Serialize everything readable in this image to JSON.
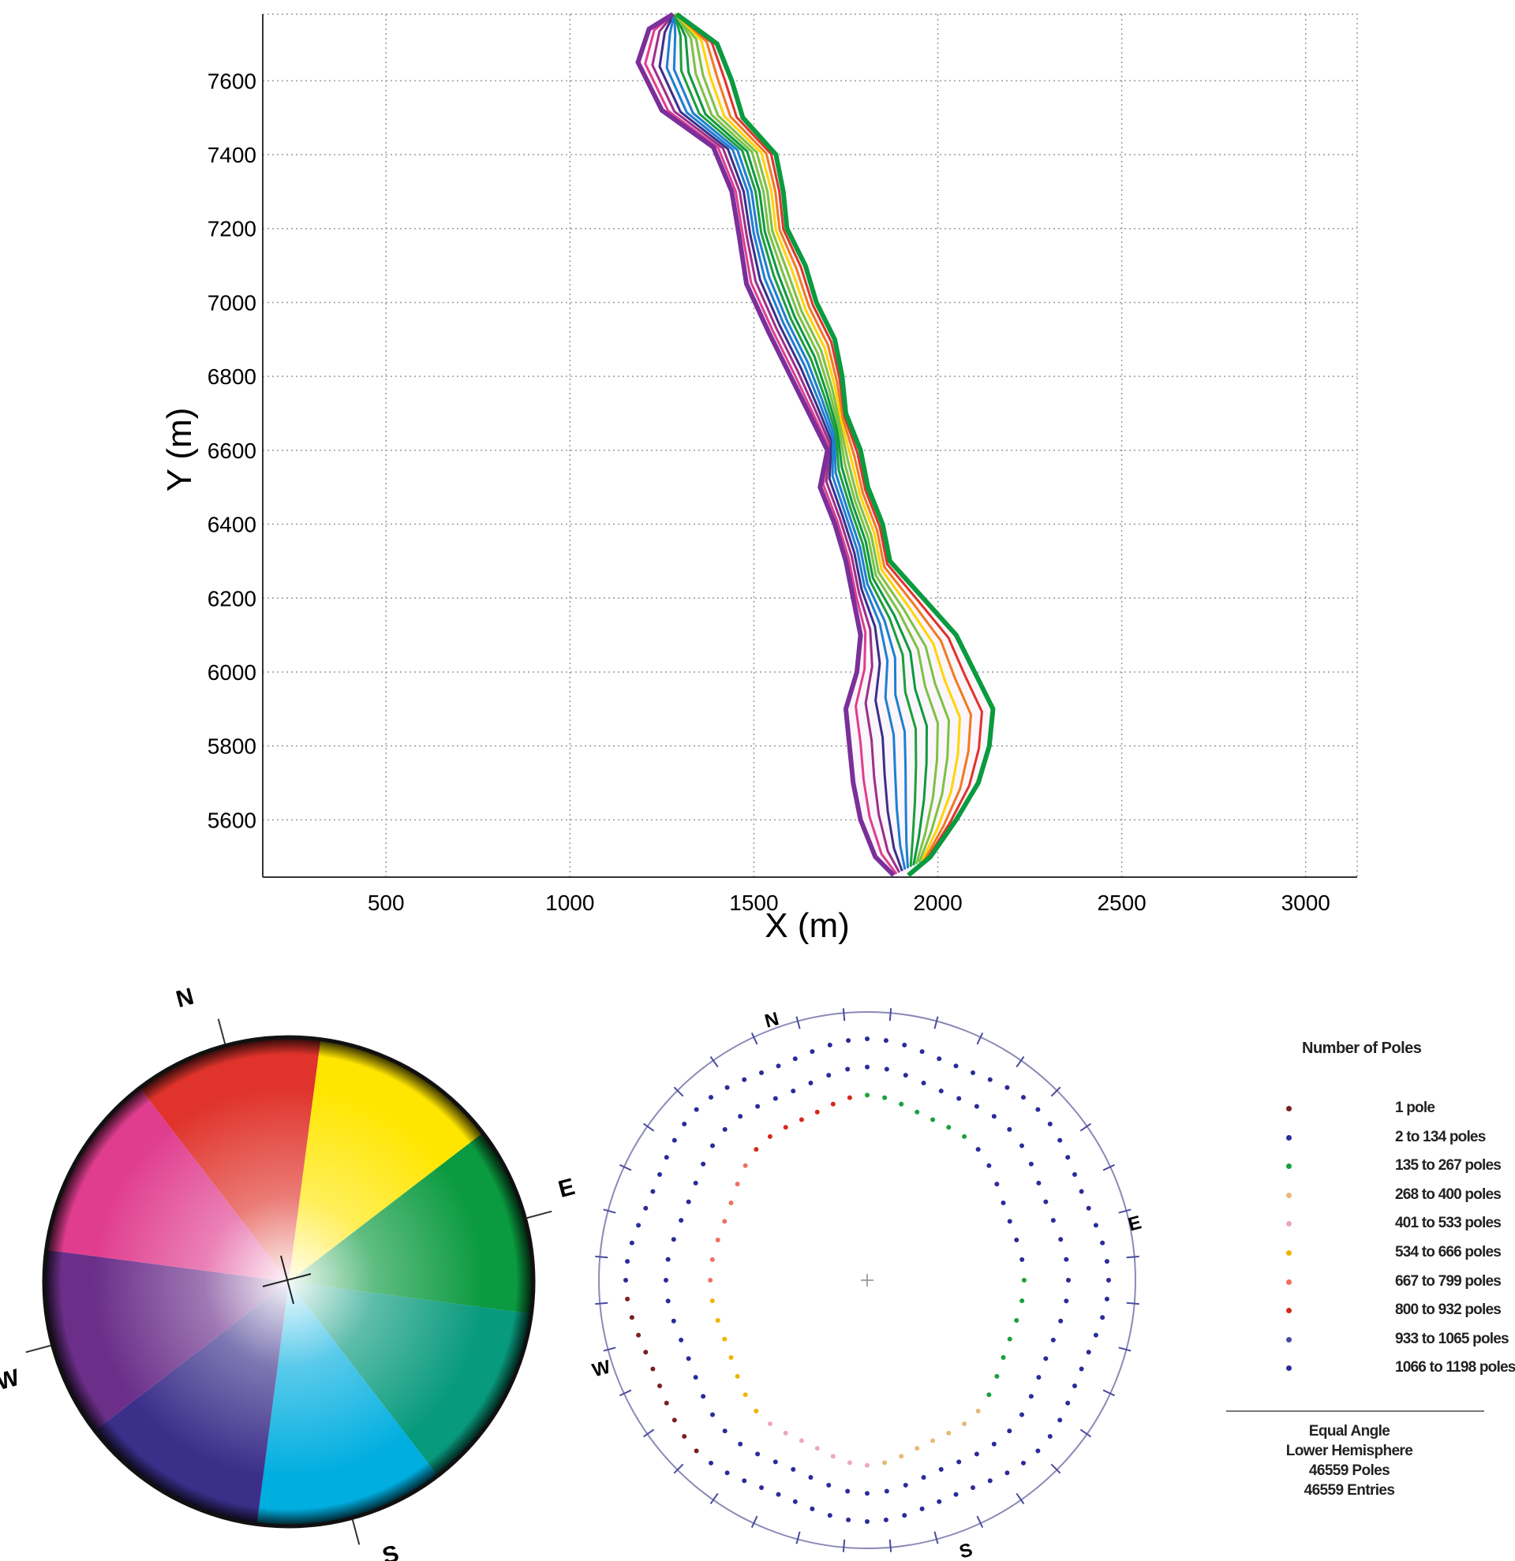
{
  "chart_data": [
    {
      "type": "line",
      "xlabel": "X (m)",
      "ylabel": "Y (m)",
      "xlim": [
        165,
        3140
      ],
      "ylim": [
        5445,
        7780
      ],
      "xticks": [
        500,
        1000,
        1500,
        2000,
        2500,
        3000
      ],
      "yticks": [
        5600,
        5800,
        6000,
        6200,
        6400,
        6600,
        6800,
        7000,
        7200,
        7400,
        7600
      ],
      "grid": true,
      "series": [
        {
          "description_color": "contour lines coloured by slope dip direction",
          "outline_west": [
            [
              1280,
              7780
            ],
            [
              1215,
              7740
            ],
            [
              1185,
              7650
            ],
            [
              1250,
              7520
            ],
            [
              1390,
              7420
            ],
            [
              1440,
              7300
            ],
            [
              1460,
              7180
            ],
            [
              1480,
              7050
            ],
            [
              1540,
              6920
            ],
            [
              1600,
              6800
            ],
            [
              1650,
              6700
            ],
            [
              1700,
              6600
            ],
            [
              1680,
              6500
            ],
            [
              1720,
              6400
            ],
            [
              1750,
              6300
            ],
            [
              1770,
              6200
            ],
            [
              1790,
              6100
            ],
            [
              1780,
              6000
            ],
            [
              1750,
              5900
            ],
            [
              1760,
              5800
            ],
            [
              1770,
              5700
            ],
            [
              1790,
              5600
            ],
            [
              1830,
              5500
            ],
            [
              1880,
              5450
            ]
          ],
          "outline_east": [
            [
              1290,
              7780
            ],
            [
              1400,
              7700
            ],
            [
              1440,
              7600
            ],
            [
              1470,
              7500
            ],
            [
              1560,
              7400
            ],
            [
              1580,
              7300
            ],
            [
              1590,
              7200
            ],
            [
              1640,
              7100
            ],
            [
              1670,
              7000
            ],
            [
              1720,
              6900
            ],
            [
              1740,
              6800
            ],
            [
              1750,
              6700
            ],
            [
              1790,
              6600
            ],
            [
              1810,
              6500
            ],
            [
              1850,
              6400
            ],
            [
              1870,
              6300
            ],
            [
              1960,
              6200
            ],
            [
              2050,
              6100
            ],
            [
              2100,
              6000
            ],
            [
              2150,
              5900
            ],
            [
              2140,
              5800
            ],
            [
              2110,
              5700
            ],
            [
              2050,
              5600
            ],
            [
              1980,
              5500
            ],
            [
              1920,
              5450
            ]
          ]
        }
      ]
    },
    {
      "type": "color_wheel",
      "directions": [
        "N",
        "E",
        "S",
        "W"
      ],
      "colors": {
        "N": "#e0332b",
        "NE": "#ffe600",
        "E": "#0a9a3f",
        "SE": "#089a7d",
        "S": "#00aee0",
        "SW": "#3b2f8a",
        "W": "#6b2f8a",
        "NW": "#e03d8f"
      }
    },
    {
      "type": "scatter",
      "projection": "stereonet",
      "directions": [
        "N",
        "E",
        "S",
        "W"
      ],
      "legend": {
        "title": "Number of Poles",
        "entries": [
          {
            "label": "1 pole",
            "color": "#7a1f1f"
          },
          {
            "label": "2 to 134 poles",
            "color": "#2b2b9a"
          },
          {
            "label": "135 to 267 poles",
            "color": "#1aa03a"
          },
          {
            "label": "268 to 400 poles",
            "color": "#e8b87a"
          },
          {
            "label": "401 to 533 poles",
            "color": "#f0a8b8"
          },
          {
            "label": "534 to 666 poles",
            "color": "#f0b400"
          },
          {
            "label": "667 to 799 poles",
            "color": "#f07060"
          },
          {
            "label": "800 to 932 poles",
            "color": "#d42a1a"
          },
          {
            "label": "933 to 1065 poles",
            "color": "#4a4aa8"
          },
          {
            "label": "1066 to 1198 poles",
            "color": "#2b2b9a"
          }
        ]
      },
      "footer": [
        "Equal Angle",
        "Lower Hemisphere",
        "46559 Poles",
        "46559 Entries"
      ]
    }
  ]
}
